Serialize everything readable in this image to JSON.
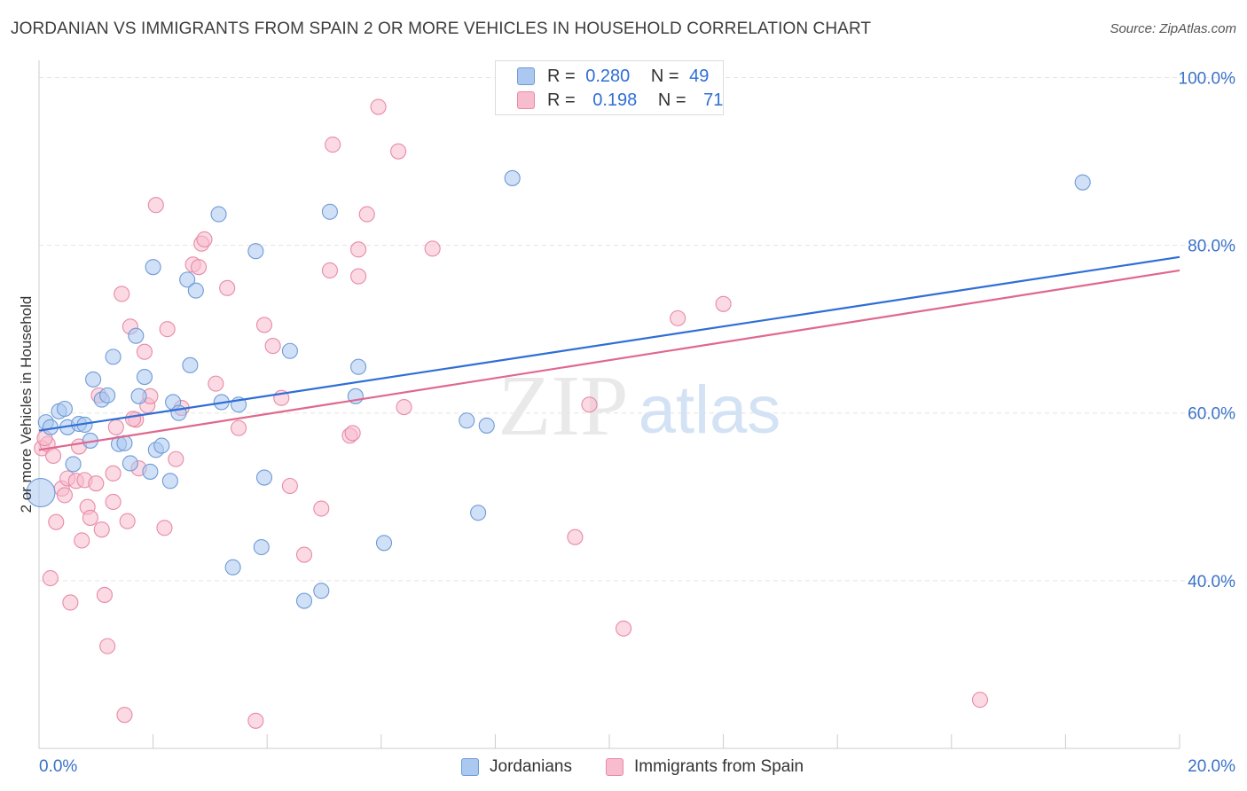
{
  "title": "JORDANIAN VS IMMIGRANTS FROM SPAIN 2 OR MORE VEHICLES IN HOUSEHOLD CORRELATION CHART",
  "source": "Source: ZipAtlas.com",
  "watermark": {
    "zip": "ZIP",
    "atlas": "atlas"
  },
  "legend_top": {
    "row1": {
      "r_label": "R =",
      "r_value": "0.280",
      "n_label": "N =",
      "n_value": "49"
    },
    "row2": {
      "r_label": "R =",
      "r_value": "0.198",
      "n_label": "N =",
      "n_value": "71"
    }
  },
  "colors": {
    "blue_fill": "#aac8f0",
    "blue_stroke": "#6f9ad6",
    "blue_line": "#2f6ed6",
    "pink_fill": "#f7bccd",
    "pink_stroke": "#e88aa8",
    "pink_line": "#e0678e",
    "tick_label": "#3a72c8",
    "grid": "#e3e3e3",
    "axis": "#cccccc"
  },
  "chart_data": {
    "type": "scatter",
    "xlabel": "",
    "ylabel": "2 or more Vehicles in Household",
    "xlim": [
      0,
      20
    ],
    "ylim": [
      20,
      101
    ],
    "x_ticks": [
      {
        "value": 0,
        "label": "0.0%"
      },
      {
        "value": 20,
        "label": "20.0%"
      }
    ],
    "y_ticks": [
      {
        "value": 40,
        "label": "40.0%"
      },
      {
        "value": 60,
        "label": "60.0%"
      },
      {
        "value": 80,
        "label": "80.0%"
      },
      {
        "value": 100,
        "label": "100.0%"
      }
    ],
    "legend": [
      "Jordanians",
      "Immigrants from Spain"
    ],
    "series": [
      {
        "name": "Jordanians",
        "r": 0.28,
        "n": 49,
        "trend": {
          "x0": 0,
          "y0": 57.9,
          "x1": 20,
          "y1": 78.6
        },
        "points": [
          [
            0.03,
            50.5
          ],
          [
            0.12,
            58.9
          ],
          [
            0.2,
            58.3
          ],
          [
            0.35,
            60.2
          ],
          [
            0.45,
            60.5
          ],
          [
            0.5,
            58.3
          ],
          [
            0.6,
            53.9
          ],
          [
            0.7,
            58.7
          ],
          [
            0.8,
            58.6
          ],
          [
            0.9,
            56.7
          ],
          [
            0.95,
            64.0
          ],
          [
            1.1,
            61.6
          ],
          [
            1.2,
            62.1
          ],
          [
            1.3,
            66.7
          ],
          [
            1.4,
            56.3
          ],
          [
            1.5,
            56.4
          ],
          [
            1.6,
            54.0
          ],
          [
            1.7,
            69.2
          ],
          [
            1.75,
            62.0
          ],
          [
            1.85,
            64.3
          ],
          [
            1.95,
            53.0
          ],
          [
            2.0,
            77.4
          ],
          [
            2.05,
            55.6
          ],
          [
            2.15,
            56.1
          ],
          [
            2.3,
            51.9
          ],
          [
            2.35,
            61.3
          ],
          [
            2.45,
            60.0
          ],
          [
            2.6,
            75.9
          ],
          [
            2.65,
            65.7
          ],
          [
            2.75,
            74.6
          ],
          [
            3.15,
            83.7
          ],
          [
            3.2,
            61.3
          ],
          [
            3.4,
            41.6
          ],
          [
            3.5,
            61.0
          ],
          [
            3.8,
            79.3
          ],
          [
            3.9,
            44.0
          ],
          [
            3.95,
            52.3
          ],
          [
            4.4,
            67.4
          ],
          [
            4.65,
            37.6
          ],
          [
            4.95,
            38.8
          ],
          [
            5.1,
            84.0
          ],
          [
            5.55,
            62.0
          ],
          [
            5.6,
            65.5
          ],
          [
            6.05,
            44.5
          ],
          [
            7.5,
            59.1
          ],
          [
            7.7,
            48.1
          ],
          [
            7.85,
            58.5
          ],
          [
            8.3,
            88.0
          ],
          [
            18.3,
            87.5
          ]
        ]
      },
      {
        "name": "Immigrants from Spain",
        "r": 0.198,
        "n": 71,
        "trend": {
          "x0": 0,
          "y0": 55.6,
          "x1": 20,
          "y1": 77.0
        },
        "points": [
          [
            0.05,
            55.8
          ],
          [
            0.15,
            56.3
          ],
          [
            0.2,
            40.3
          ],
          [
            0.25,
            54.9
          ],
          [
            0.3,
            47.0
          ],
          [
            0.4,
            51.0
          ],
          [
            0.45,
            50.2
          ],
          [
            0.5,
            52.2
          ],
          [
            0.55,
            37.4
          ],
          [
            0.65,
            51.9
          ],
          [
            0.7,
            56.0
          ],
          [
            0.75,
            44.8
          ],
          [
            0.8,
            52.0
          ],
          [
            0.85,
            48.8
          ],
          [
            0.9,
            47.5
          ],
          [
            1.0,
            51.6
          ],
          [
            1.05,
            62.1
          ],
          [
            1.1,
            46.1
          ],
          [
            1.15,
            38.3
          ],
          [
            1.2,
            32.2
          ],
          [
            1.3,
            52.8
          ],
          [
            1.3,
            49.4
          ],
          [
            1.35,
            58.3
          ],
          [
            1.45,
            74.2
          ],
          [
            1.5,
            24.0
          ],
          [
            1.55,
            47.1
          ],
          [
            1.6,
            70.3
          ],
          [
            1.7,
            59.2
          ],
          [
            1.75,
            53.4
          ],
          [
            1.85,
            67.3
          ],
          [
            1.9,
            60.9
          ],
          [
            1.95,
            62.0
          ],
          [
            2.05,
            84.8
          ],
          [
            2.2,
            46.3
          ],
          [
            2.25,
            70.0
          ],
          [
            2.5,
            60.6
          ],
          [
            2.7,
            77.7
          ],
          [
            2.8,
            77.4
          ],
          [
            2.85,
            80.2
          ],
          [
            2.9,
            80.7
          ],
          [
            3.1,
            63.5
          ],
          [
            3.3,
            74.9
          ],
          [
            3.5,
            58.2
          ],
          [
            3.8,
            23.3
          ],
          [
            3.95,
            70.5
          ],
          [
            4.1,
            68.0
          ],
          [
            4.25,
            61.8
          ],
          [
            4.4,
            51.3
          ],
          [
            4.65,
            43.1
          ],
          [
            4.95,
            48.6
          ],
          [
            5.1,
            77.0
          ],
          [
            5.15,
            92.0
          ],
          [
            5.45,
            57.3
          ],
          [
            5.6,
            79.5
          ],
          [
            5.6,
            76.3
          ],
          [
            5.75,
            83.7
          ],
          [
            5.95,
            96.5
          ],
          [
            6.3,
            91.2
          ],
          [
            6.4,
            60.7
          ],
          [
            6.9,
            79.6
          ],
          [
            8.3,
            100.0
          ],
          [
            9.4,
            45.2
          ],
          [
            9.65,
            61.0
          ],
          [
            10.25,
            34.3
          ],
          [
            11.2,
            71.3
          ],
          [
            12.0,
            73.0
          ],
          [
            16.5,
            25.8
          ],
          [
            0.1,
            57.0
          ],
          [
            1.65,
            59.3
          ],
          [
            2.4,
            54.5
          ],
          [
            5.5,
            57.6
          ]
        ]
      }
    ]
  }
}
